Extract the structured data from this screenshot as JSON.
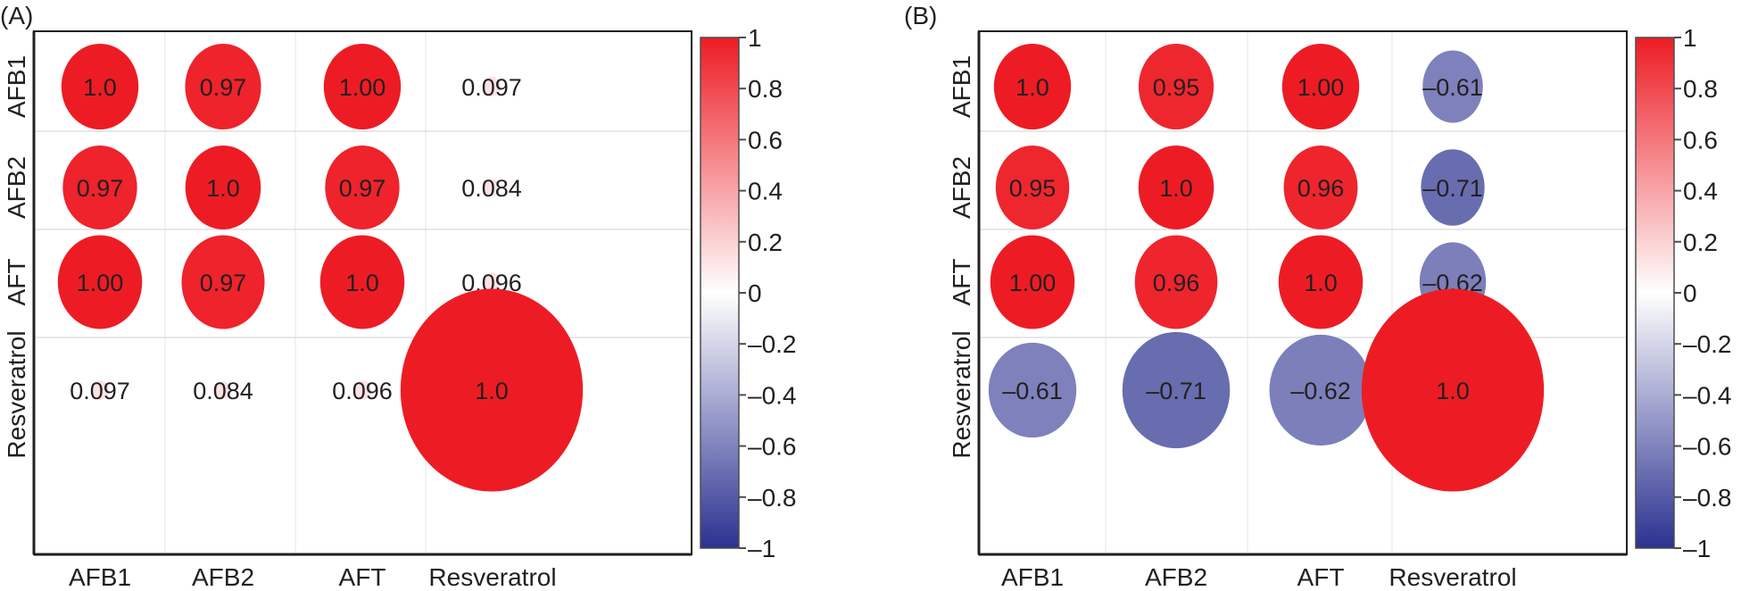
{
  "chart_data": [
    {
      "type": "heatmap",
      "subtype": "correlation-circle",
      "panel_label": "(A)",
      "title": "",
      "variables": [
        "AFB1",
        "AFB2",
        "AFT",
        "Resveratrol"
      ],
      "row_labels": [
        "AFB1",
        "AFB2",
        "AFT",
        "Resveratrol"
      ],
      "col_labels": [
        "AFB1",
        "AFB2",
        "AFT",
        "Resveratrol"
      ],
      "values": [
        [
          1.0,
          0.97,
          1.0,
          0.097
        ],
        [
          0.97,
          1.0,
          0.97,
          0.084
        ],
        [
          1.0,
          0.97,
          1.0,
          0.096
        ],
        [
          0.097,
          0.084,
          0.096,
          1.0
        ]
      ],
      "cell_labels": [
        [
          "1.0",
          "0.97",
          "1.00",
          "0.097"
        ],
        [
          "0.97",
          "1.0",
          "0.97",
          "0.084"
        ],
        [
          "1.00",
          "0.97",
          "1.0",
          "0.096"
        ],
        [
          "0.097",
          "0.084",
          "0.096",
          "1.0"
        ]
      ],
      "colorbar": {
        "range": [
          -1,
          1
        ],
        "ticks": [
          1,
          0.8,
          0.6,
          0.4,
          0.2,
          0,
          -0.2,
          -0.4,
          -0.6,
          -0.8,
          -1
        ],
        "tick_labels": [
          "1",
          "0.8",
          "0.6",
          "0.4",
          "0.2",
          "0",
          "–0.2",
          "–0.4",
          "–0.6",
          "–0.8",
          "–1"
        ],
        "colors": {
          "high": "#ed1c24",
          "mid": "#ffffff",
          "low": "#2b3190"
        }
      },
      "grid": true
    },
    {
      "type": "heatmap",
      "subtype": "correlation-circle",
      "panel_label": "(B)",
      "title": "",
      "variables": [
        "AFB1",
        "AFB2",
        "AFT",
        "Resveratrol"
      ],
      "row_labels": [
        "AFB1",
        "AFB2",
        "AFT",
        "Resveratrol"
      ],
      "col_labels": [
        "AFB1",
        "AFB2",
        "AFT",
        "Resveratrol"
      ],
      "values": [
        [
          1.0,
          0.95,
          1.0,
          -0.61
        ],
        [
          0.95,
          1.0,
          0.96,
          -0.71
        ],
        [
          1.0,
          0.96,
          1.0,
          -0.62
        ],
        [
          -0.61,
          -0.71,
          -0.62,
          1.0
        ]
      ],
      "cell_labels": [
        [
          "1.0",
          "0.95",
          "1.00",
          "–0.61"
        ],
        [
          "0.95",
          "1.0",
          "0.96",
          "–0.71"
        ],
        [
          "1.00",
          "0.96",
          "1.0",
          "–0.62"
        ],
        [
          "–0.61",
          "–0.71",
          "–0.62",
          "1.0"
        ]
      ],
      "colorbar": {
        "range": [
          -1,
          1
        ],
        "ticks": [
          1,
          0.8,
          0.6,
          0.4,
          0.2,
          0,
          -0.2,
          -0.4,
          -0.6,
          -0.8,
          -1
        ],
        "tick_labels": [
          "1",
          "0.8",
          "0.6",
          "0.4",
          "0.2",
          "0",
          "–0.2",
          "–0.4",
          "–0.6",
          "–0.8",
          "–1"
        ],
        "colors": {
          "high": "#ed1c24",
          "mid": "#ffffff",
          "low": "#2b3190"
        }
      },
      "grid": true
    }
  ]
}
